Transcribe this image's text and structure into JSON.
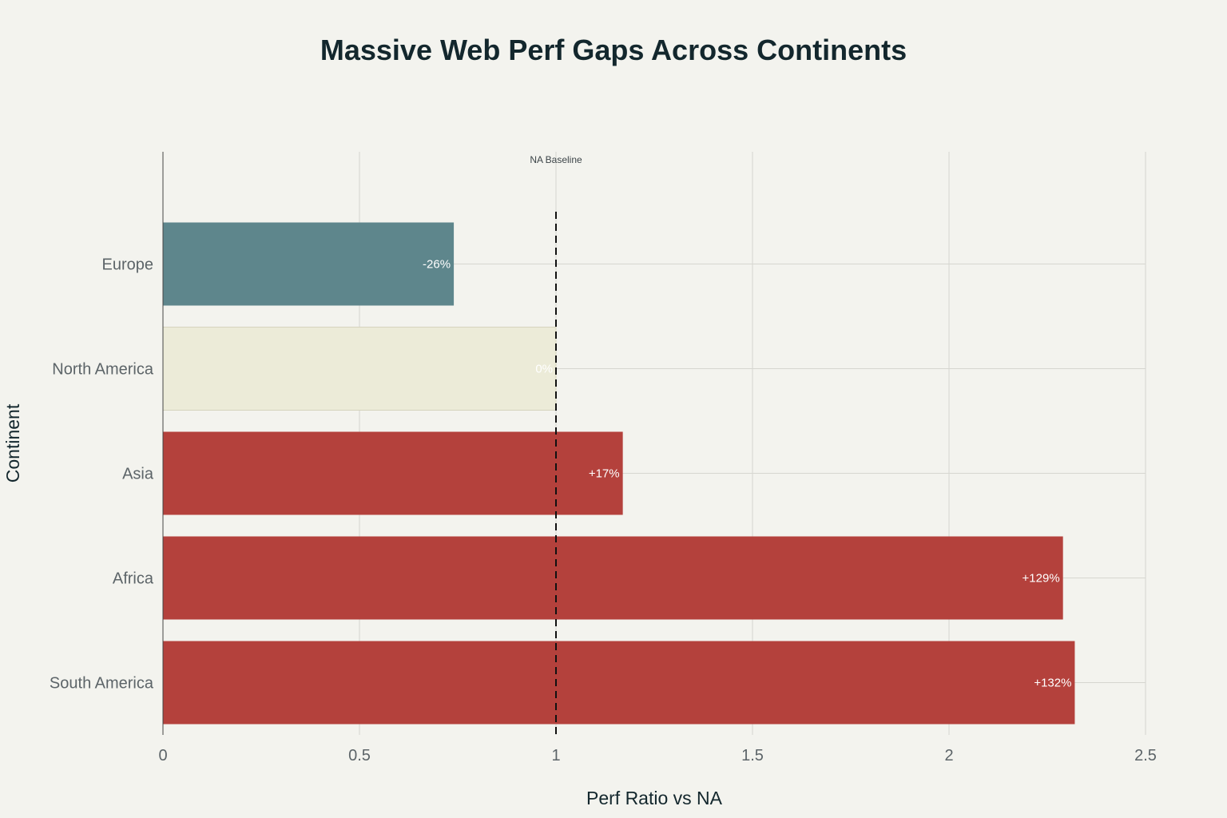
{
  "chart_data": {
    "type": "bar",
    "orientation": "horizontal",
    "title": "Massive Web Perf Gaps Across Continents",
    "xlabel": "Perf Ratio vs NA",
    "ylabel": "Continent",
    "xlim": [
      0,
      2.5
    ],
    "xticks": [
      0,
      0.5,
      1,
      1.5,
      2,
      2.5
    ],
    "xtick_labels": [
      "0",
      "0.5",
      "1",
      "1.5",
      "2",
      "2.5"
    ],
    "grid": true,
    "categories": [
      "Europe",
      "North America",
      "Asia",
      "Africa",
      "South America"
    ],
    "values": [
      0.74,
      1.0,
      1.17,
      2.29,
      2.32
    ],
    "data_labels": [
      "-26%",
      "0%",
      "+17%",
      "+129%",
      "+132%"
    ],
    "colors": [
      "#5e868c",
      "#ecebd8",
      "#b4413c",
      "#b4413c",
      "#b4413c"
    ],
    "reference_line": {
      "x": 1,
      "label": "NA Baseline",
      "style": "dashed",
      "color": "#111111"
    }
  }
}
